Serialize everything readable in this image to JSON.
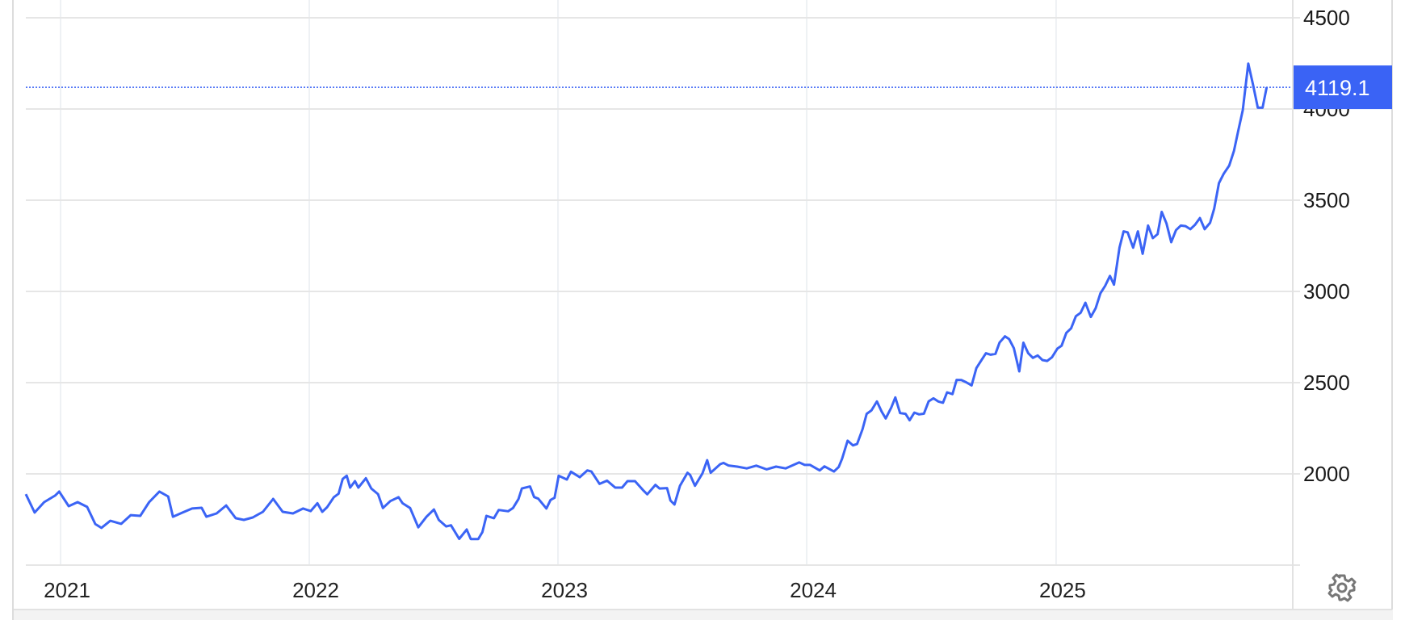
{
  "chart_data": {
    "type": "line",
    "title": "",
    "xlabel": "",
    "ylabel": "",
    "x_ticks": [
      "2021",
      "2022",
      "2023",
      "2024",
      "2025"
    ],
    "y_ticks": [
      2000,
      2500,
      3000,
      3500,
      4000,
      4500
    ],
    "ylim": [
      1500,
      4500
    ],
    "grid": true,
    "last_value_label": "4119.1",
    "colors": {
      "line": "#3b64f5",
      "tag": "#3a63f5",
      "grid": "#e6e6e6",
      "vgrid": "#eef1f4"
    },
    "icons": {
      "settings": "gear-icon"
    },
    "series": [
      {
        "points": [
          [
            "2020-11-11",
            1889
          ],
          [
            "2020-11-24",
            1788
          ],
          [
            "2020-12-08",
            1845
          ],
          [
            "2020-12-24",
            1881
          ],
          [
            "2020-12-30",
            1903
          ],
          [
            "2021-01-13",
            1823
          ],
          [
            "2021-01-26",
            1845
          ],
          [
            "2021-02-09",
            1819
          ],
          [
            "2021-02-21",
            1725
          ],
          [
            "2021-03-02",
            1704
          ],
          [
            "2021-03-15",
            1743
          ],
          [
            "2021-03-31",
            1726
          ],
          [
            "2021-04-14",
            1774
          ],
          [
            "2021-04-28",
            1770
          ],
          [
            "2021-05-11",
            1845
          ],
          [
            "2021-05-26",
            1903
          ],
          [
            "2021-06-08",
            1876
          ],
          [
            "2021-06-15",
            1765
          ],
          [
            "2021-06-29",
            1788
          ],
          [
            "2021-07-13",
            1810
          ],
          [
            "2021-07-27",
            1814
          ],
          [
            "2021-08-03",
            1765
          ],
          [
            "2021-08-18",
            1783
          ],
          [
            "2021-09-01",
            1827
          ],
          [
            "2021-09-15",
            1757
          ],
          [
            "2021-09-27",
            1748
          ],
          [
            "2021-10-10",
            1761
          ],
          [
            "2021-10-25",
            1792
          ],
          [
            "2021-11-09",
            1863
          ],
          [
            "2021-11-23",
            1792
          ],
          [
            "2021-12-08",
            1783
          ],
          [
            "2021-12-23",
            1810
          ],
          [
            "2022-01-03",
            1796
          ],
          [
            "2022-01-13",
            1839
          ],
          [
            "2022-01-20",
            1792
          ],
          [
            "2022-01-27",
            1817
          ],
          [
            "2022-02-06",
            1872
          ],
          [
            "2022-02-13",
            1891
          ],
          [
            "2022-02-19",
            1972
          ],
          [
            "2022-02-25",
            1990
          ],
          [
            "2022-03-02",
            1925
          ],
          [
            "2022-03-09",
            1960
          ],
          [
            "2022-03-14",
            1925
          ],
          [
            "2022-03-25",
            1976
          ],
          [
            "2022-04-02",
            1920
          ],
          [
            "2022-04-12",
            1889
          ],
          [
            "2022-04-19",
            1813
          ],
          [
            "2022-04-30",
            1851
          ],
          [
            "2022-05-12",
            1872
          ],
          [
            "2022-05-18",
            1839
          ],
          [
            "2022-05-29",
            1813
          ],
          [
            "2022-06-10",
            1707
          ],
          [
            "2022-06-22",
            1765
          ],
          [
            "2022-07-03",
            1805
          ],
          [
            "2022-07-10",
            1748
          ],
          [
            "2022-07-21",
            1712
          ],
          [
            "2022-07-28",
            1718
          ],
          [
            "2022-08-09",
            1644
          ],
          [
            "2022-08-20",
            1695
          ],
          [
            "2022-08-26",
            1643
          ],
          [
            "2022-09-06",
            1643
          ],
          [
            "2022-09-12",
            1681
          ],
          [
            "2022-09-18",
            1770
          ],
          [
            "2022-09-29",
            1757
          ],
          [
            "2022-10-06",
            1802
          ],
          [
            "2022-10-20",
            1795
          ],
          [
            "2022-10-27",
            1813
          ],
          [
            "2022-11-04",
            1862
          ],
          [
            "2022-11-09",
            1920
          ],
          [
            "2022-11-21",
            1931
          ],
          [
            "2022-11-27",
            1873
          ],
          [
            "2022-12-03",
            1864
          ],
          [
            "2022-12-15",
            1810
          ],
          [
            "2022-12-21",
            1857
          ],
          [
            "2022-12-27",
            1869
          ],
          [
            "2023-01-02",
            1990
          ],
          [
            "2023-01-14",
            1969
          ],
          [
            "2023-01-20",
            2012
          ],
          [
            "2023-02-02",
            1982
          ],
          [
            "2023-02-13",
            2019
          ],
          [
            "2023-02-19",
            2013
          ],
          [
            "2023-03-03",
            1945
          ],
          [
            "2023-03-14",
            1963
          ],
          [
            "2023-03-26",
            1925
          ],
          [
            "2023-04-05",
            1925
          ],
          [
            "2023-04-13",
            1960
          ],
          [
            "2023-04-24",
            1960
          ],
          [
            "2023-05-06",
            1910
          ],
          [
            "2023-05-12",
            1888
          ],
          [
            "2023-05-24",
            1940
          ],
          [
            "2023-05-30",
            1920
          ],
          [
            "2023-06-10",
            1922
          ],
          [
            "2023-06-15",
            1854
          ],
          [
            "2023-06-21",
            1832
          ],
          [
            "2023-06-29",
            1935
          ],
          [
            "2023-07-10",
            2006
          ],
          [
            "2023-07-14",
            1994
          ],
          [
            "2023-07-21",
            1935
          ],
          [
            "2023-08-01",
            2002
          ],
          [
            "2023-08-08",
            2075
          ],
          [
            "2023-08-13",
            2006
          ],
          [
            "2023-08-27",
            2053
          ],
          [
            "2023-09-01",
            2060
          ],
          [
            "2023-09-08",
            2046
          ],
          [
            "2023-09-21",
            2040
          ],
          [
            "2023-10-05",
            2030
          ],
          [
            "2023-10-19",
            2045
          ],
          [
            "2023-11-03",
            2025
          ],
          [
            "2023-11-17",
            2040
          ],
          [
            "2023-12-01",
            2030
          ],
          [
            "2023-12-21",
            2063
          ],
          [
            "2023-12-29",
            2049
          ],
          [
            "2024-01-06",
            2049
          ],
          [
            "2024-01-20",
            2019
          ],
          [
            "2024-01-27",
            2041
          ],
          [
            "2024-02-10",
            2013
          ],
          [
            "2024-02-17",
            2038
          ],
          [
            "2024-02-22",
            2083
          ],
          [
            "2024-03-01",
            2182
          ],
          [
            "2024-03-09",
            2156
          ],
          [
            "2024-03-15",
            2164
          ],
          [
            "2024-03-23",
            2245
          ],
          [
            "2024-03-29",
            2329
          ],
          [
            "2024-04-05",
            2348
          ],
          [
            "2024-04-13",
            2397
          ],
          [
            "2024-04-20",
            2341
          ],
          [
            "2024-04-26",
            2304
          ],
          [
            "2024-05-04",
            2363
          ],
          [
            "2024-05-10",
            2419
          ],
          [
            "2024-05-17",
            2333
          ],
          [
            "2024-05-25",
            2329
          ],
          [
            "2024-05-31",
            2294
          ],
          [
            "2024-06-07",
            2336
          ],
          [
            "2024-06-14",
            2326
          ],
          [
            "2024-06-21",
            2330
          ],
          [
            "2024-06-28",
            2398
          ],
          [
            "2024-07-05",
            2414
          ],
          [
            "2024-07-12",
            2397
          ],
          [
            "2024-07-19",
            2390
          ],
          [
            "2024-07-25",
            2447
          ],
          [
            "2024-08-02",
            2437
          ],
          [
            "2024-08-08",
            2515
          ],
          [
            "2024-08-15",
            2514
          ],
          [
            "2024-08-22",
            2502
          ],
          [
            "2024-08-30",
            2485
          ],
          [
            "2024-09-06",
            2580
          ],
          [
            "2024-09-13",
            2621
          ],
          [
            "2024-09-20",
            2661
          ],
          [
            "2024-09-27",
            2653
          ],
          [
            "2024-10-04",
            2658
          ],
          [
            "2024-10-10",
            2720
          ],
          [
            "2024-10-18",
            2754
          ],
          [
            "2024-10-24",
            2739
          ],
          [
            "2024-10-31",
            2689
          ],
          [
            "2024-11-08",
            2562
          ],
          [
            "2024-11-14",
            2719
          ],
          [
            "2024-11-21",
            2662
          ],
          [
            "2024-11-28",
            2636
          ],
          [
            "2024-12-05",
            2649
          ],
          [
            "2024-12-12",
            2624
          ],
          [
            "2024-12-19",
            2619
          ],
          [
            "2024-12-26",
            2639
          ],
          [
            "2025-01-03",
            2687
          ],
          [
            "2025-01-09",
            2702
          ],
          [
            "2025-01-16",
            2773
          ],
          [
            "2025-01-23",
            2798
          ],
          [
            "2025-01-30",
            2864
          ],
          [
            "2025-02-06",
            2883
          ],
          [
            "2025-02-13",
            2938
          ],
          [
            "2025-02-21",
            2860
          ],
          [
            "2025-02-28",
            2908
          ],
          [
            "2025-03-07",
            2990
          ],
          [
            "2025-03-14",
            3031
          ],
          [
            "2025-03-21",
            3085
          ],
          [
            "2025-03-27",
            3037
          ],
          [
            "2025-04-04",
            3240
          ],
          [
            "2025-04-10",
            3329
          ],
          [
            "2025-04-16",
            3324
          ],
          [
            "2025-04-24",
            3240
          ],
          [
            "2025-05-01",
            3329
          ],
          [
            "2025-05-08",
            3206
          ],
          [
            "2025-05-16",
            3361
          ],
          [
            "2025-05-23",
            3292
          ],
          [
            "2025-05-30",
            3314
          ],
          [
            "2025-06-05",
            3436
          ],
          [
            "2025-06-12",
            3373
          ],
          [
            "2025-06-19",
            3270
          ],
          [
            "2025-06-26",
            3336
          ],
          [
            "2025-07-03",
            3361
          ],
          [
            "2025-07-10",
            3358
          ],
          [
            "2025-07-17",
            3341
          ],
          [
            "2025-07-24",
            3366
          ],
          [
            "2025-07-31",
            3402
          ],
          [
            "2025-08-07",
            3341
          ],
          [
            "2025-08-15",
            3376
          ],
          [
            "2025-08-21",
            3454
          ],
          [
            "2025-08-28",
            3594
          ],
          [
            "2025-09-04",
            3645
          ],
          [
            "2025-09-12",
            3690
          ],
          [
            "2025-09-19",
            3771
          ],
          [
            "2025-09-25",
            3875
          ],
          [
            "2025-10-02",
            3994
          ],
          [
            "2025-10-10",
            4249
          ],
          [
            "2025-10-17",
            4133
          ],
          [
            "2025-10-24",
            4007
          ],
          [
            "2025-10-31",
            4007
          ],
          [
            "2025-11-06",
            4119.1
          ]
        ]
      }
    ]
  }
}
